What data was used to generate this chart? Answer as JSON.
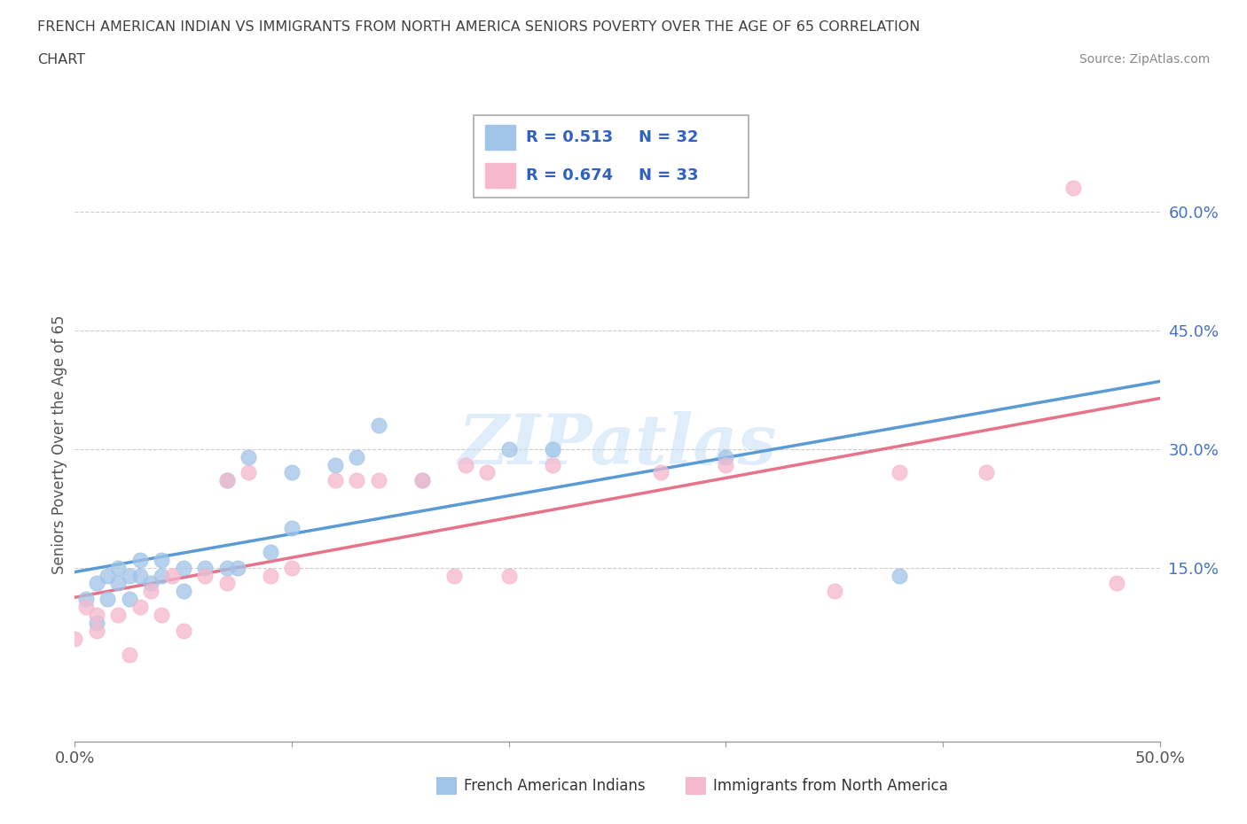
{
  "title_line1": "FRENCH AMERICAN INDIAN VS IMMIGRANTS FROM NORTH AMERICA SENIORS POVERTY OVER THE AGE OF 65 CORRELATION",
  "title_line2": "CHART",
  "source": "Source: ZipAtlas.com",
  "ylabel": "Seniors Poverty Over the Age of 65",
  "xlim": [
    0.0,
    0.5
  ],
  "ylim": [
    -0.07,
    0.68
  ],
  "xticks": [
    0.0,
    0.1,
    0.2,
    0.3,
    0.4,
    0.5
  ],
  "xticklabels": [
    "0.0%",
    "",
    "",
    "",
    "",
    "50.0%"
  ],
  "yticks": [
    0.15,
    0.3,
    0.45,
    0.6
  ],
  "yticklabels": [
    "15.0%",
    "30.0%",
    "45.0%",
    "60.0%"
  ],
  "legend_r1": "R = 0.513",
  "legend_n1": "N = 32",
  "legend_r2": "R = 0.674",
  "legend_n2": "N = 33",
  "watermark": "ZIPatlas",
  "blue_color": "#a0c4e8",
  "pink_color": "#f5b8cc",
  "blue_line": "#5b9bd5",
  "pink_line": "#e8728a",
  "legend_text_color": "#3060c0",
  "ytick_color": "#4472c4",
  "title_color": "#404040",
  "source_color": "#888888",
  "series1_x": [
    0.005,
    0.01,
    0.01,
    0.015,
    0.015,
    0.02,
    0.02,
    0.025,
    0.025,
    0.03,
    0.03,
    0.035,
    0.04,
    0.04,
    0.05,
    0.05,
    0.06,
    0.07,
    0.07,
    0.075,
    0.08,
    0.09,
    0.1,
    0.1,
    0.12,
    0.13,
    0.14,
    0.16,
    0.2,
    0.22,
    0.3,
    0.38
  ],
  "series1_y": [
    0.11,
    0.08,
    0.13,
    0.11,
    0.14,
    0.13,
    0.15,
    0.11,
    0.14,
    0.14,
    0.16,
    0.13,
    0.14,
    0.16,
    0.12,
    0.15,
    0.15,
    0.15,
    0.26,
    0.15,
    0.29,
    0.17,
    0.2,
    0.27,
    0.28,
    0.29,
    0.33,
    0.26,
    0.3,
    0.3,
    0.29,
    0.14
  ],
  "series2_x": [
    0.0,
    0.005,
    0.01,
    0.01,
    0.02,
    0.025,
    0.03,
    0.035,
    0.04,
    0.045,
    0.05,
    0.06,
    0.07,
    0.07,
    0.08,
    0.09,
    0.1,
    0.12,
    0.13,
    0.14,
    0.16,
    0.175,
    0.18,
    0.19,
    0.2,
    0.22,
    0.27,
    0.3,
    0.35,
    0.38,
    0.42,
    0.46,
    0.48
  ],
  "series2_y": [
    0.06,
    0.1,
    0.07,
    0.09,
    0.09,
    0.04,
    0.1,
    0.12,
    0.09,
    0.14,
    0.07,
    0.14,
    0.13,
    0.26,
    0.27,
    0.14,
    0.15,
    0.26,
    0.26,
    0.26,
    0.26,
    0.14,
    0.28,
    0.27,
    0.14,
    0.28,
    0.27,
    0.28,
    0.12,
    0.27,
    0.27,
    0.63,
    0.13
  ]
}
